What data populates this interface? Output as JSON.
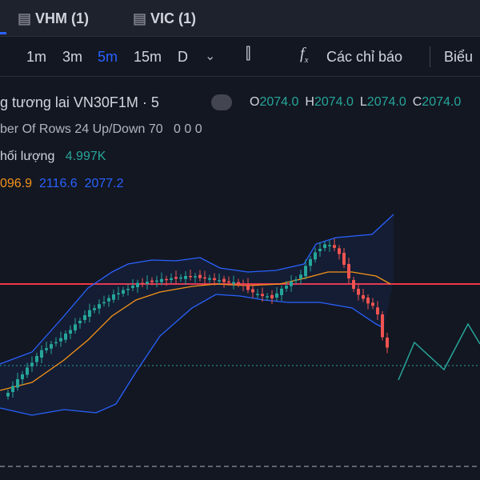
{
  "tabs": [
    {
      "label": "VHM (1)"
    },
    {
      "label": "VIC (1)"
    }
  ],
  "toolbar": {
    "intervals": [
      "1m",
      "3m",
      "5m",
      "15m",
      "D"
    ],
    "active_index": 2,
    "indicators": "Các chỉ báo",
    "chart_type": "Biểu"
  },
  "legend": {
    "symbol": "g tương lai VN30F1M · 5",
    "ohlc": [
      {
        "key": "O",
        "value": "2074.0"
      },
      {
        "key": "H",
        "value": "2074.0"
      },
      {
        "key": "L",
        "value": "2074.0"
      },
      {
        "key": "C",
        "value": "2074.0"
      }
    ],
    "volume_profile": {
      "label": "ber Of Rows 24 Up/Down 70",
      "values": "0 0 0"
    },
    "volume": {
      "label": "hối lượng",
      "value": "4.997K"
    },
    "bollinger": [
      "096.9",
      "2116.6",
      "2077.2"
    ]
  }
}
